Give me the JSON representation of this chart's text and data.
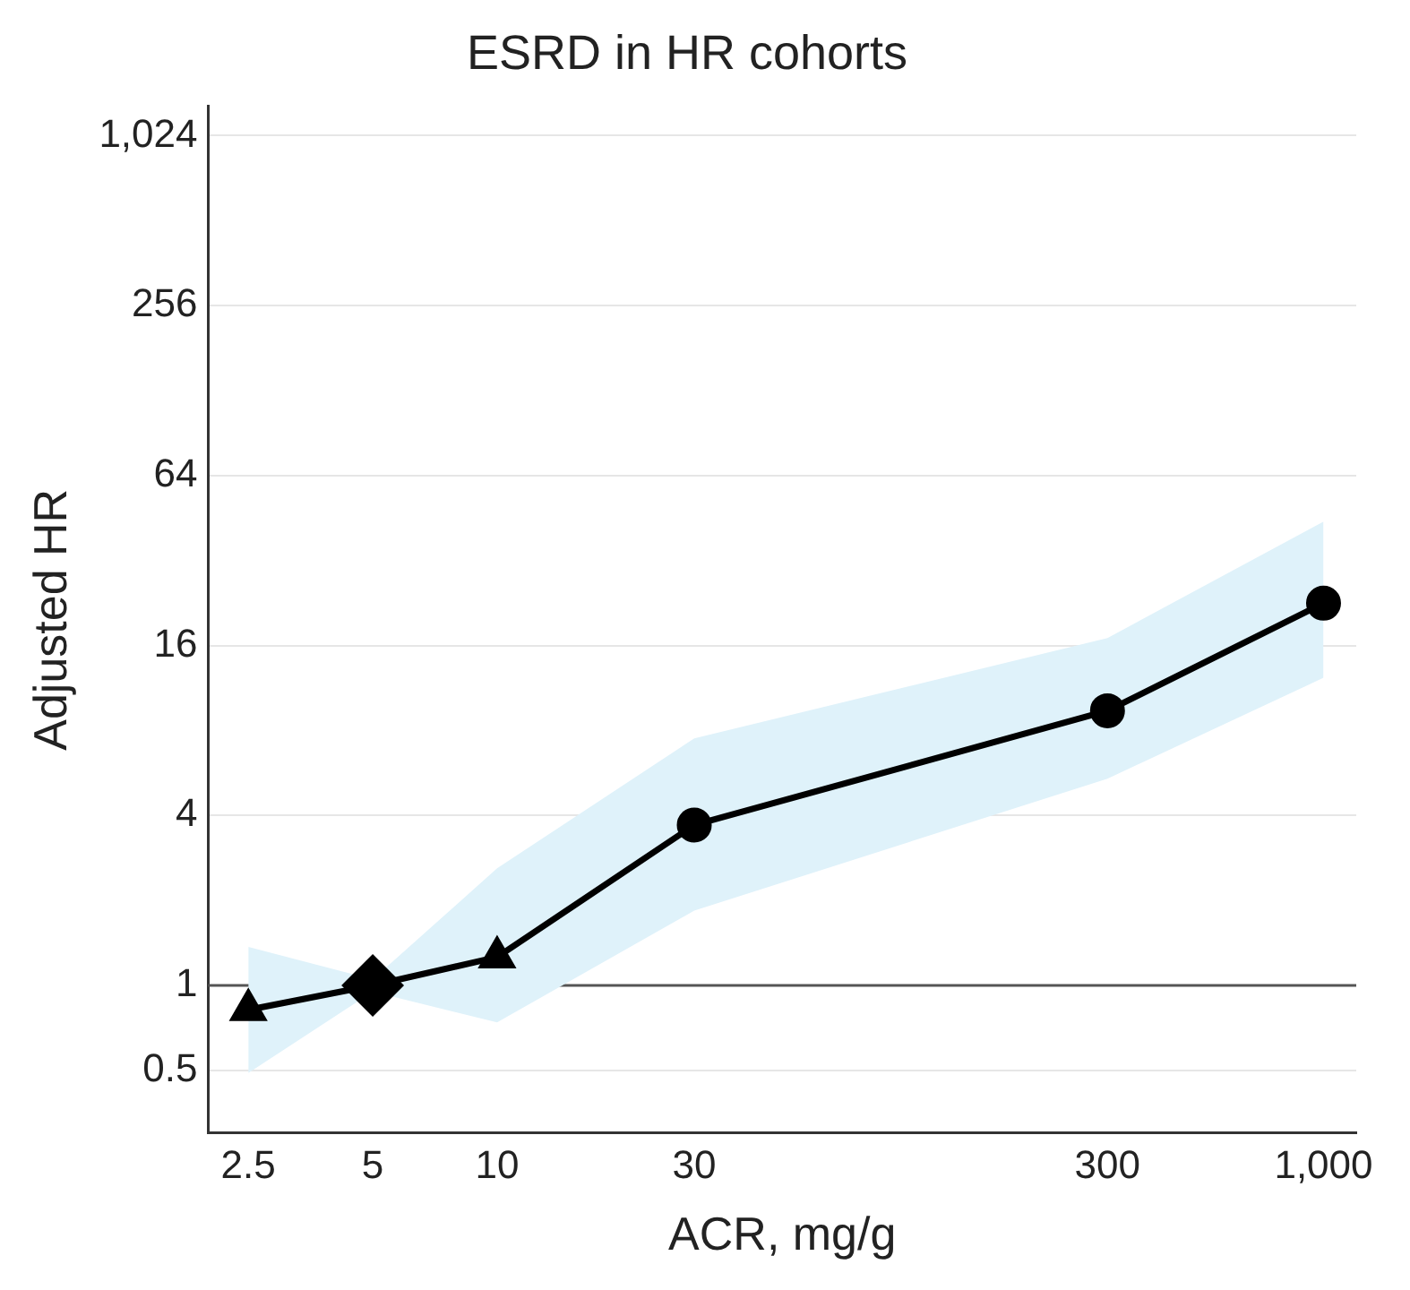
{
  "chart_data": {
    "type": "line",
    "title": "ESRD in HR cohorts",
    "xlabel": "ACR, mg/g",
    "ylabel": "Adjusted HR",
    "log": "xy",
    "grid": "y",
    "legend": false,
    "xlim": [
      2,
      1200
    ],
    "xticks": [
      2.5,
      5,
      10,
      30,
      300,
      {
        "value": 1000,
        "label": "1,000"
      }
    ],
    "ylim": [
      0.3,
      1300
    ],
    "yticks": [
      0.5,
      1,
      4,
      16,
      64,
      256,
      {
        "value": 1024,
        "label": "1,024"
      }
    ],
    "ref_lines": [
      {
        "axis": "y",
        "value": 1,
        "color": "#555555"
      }
    ],
    "series": [
      {
        "type": "line",
        "color": "#000000",
        "marker": "none",
        "x": [
          2.5,
          5,
          10,
          30,
          300,
          1000
        ],
        "values": [
          0.82,
          1,
          1.26,
          3.7,
          9.4,
          22.6
        ],
        "lower": [
          0.49,
          0.95,
          0.74,
          1.84,
          5.4,
          12.3
        ],
        "upper": [
          1.37,
          1.05,
          2.6,
          7.5,
          17,
          44
        ]
      },
      {
        "type": "scatter",
        "color": "#000000",
        "marker": "triangle",
        "x": [
          2.5,
          10
        ],
        "values": [
          0.82,
          1.26
        ]
      },
      {
        "type": "scatter",
        "color": "#000000",
        "marker": "diamond",
        "x": [
          5
        ],
        "values": [
          1
        ]
      },
      {
        "type": "scatter",
        "color": "#000000",
        "marker": "circle",
        "x": [
          30,
          300,
          1000
        ],
        "values": [
          3.7,
          9.4,
          22.6
        ]
      }
    ]
  }
}
